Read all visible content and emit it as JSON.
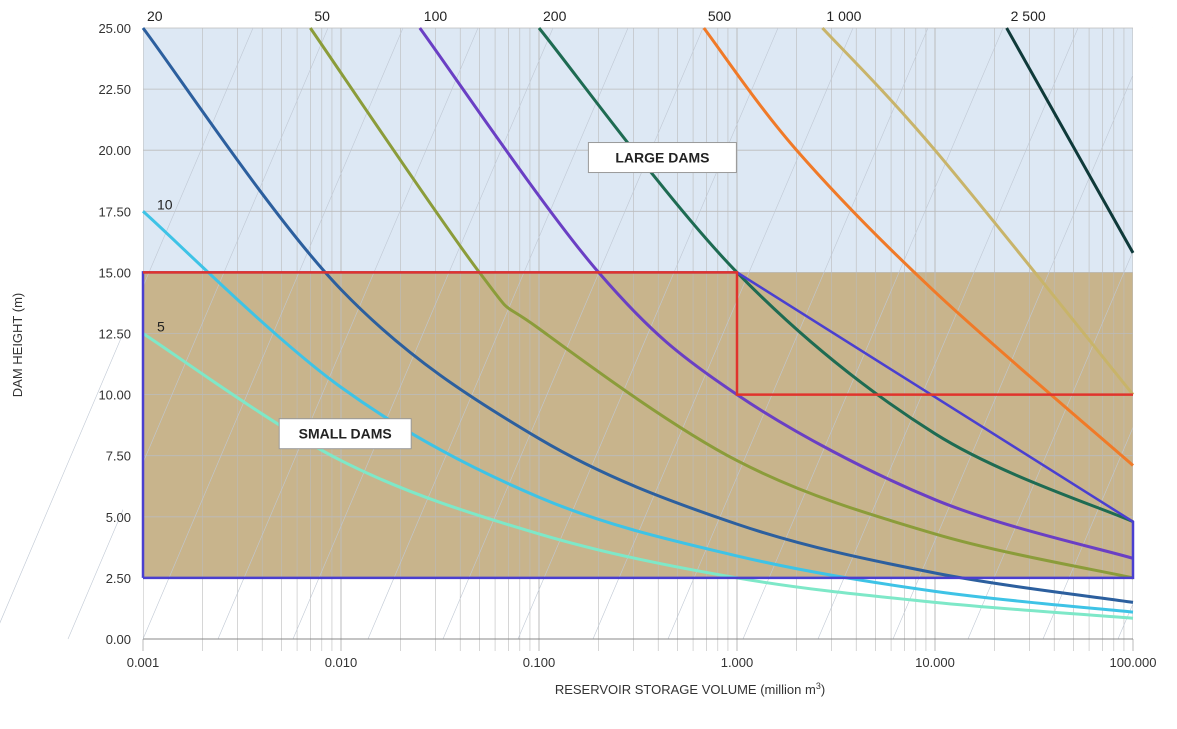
{
  "chart_data": {
    "type": "line",
    "xlabel": "RESERVOIR STORAGE VOLUME (million m",
    "xlabel_sup": "3",
    "xlabel_close": ")",
    "ylabel": "DAM HEIGHT (m)",
    "xscale": "log",
    "xlim": [
      0.001,
      100
    ],
    "ylim": [
      0,
      25
    ],
    "grid": true,
    "x_ticks": [
      {
        "value": 0.001,
        "label": "0.001"
      },
      {
        "value": 0.01,
        "label": "0.010"
      },
      {
        "value": 0.1,
        "label": "0.100"
      },
      {
        "value": 1,
        "label": "1.000"
      },
      {
        "value": 10,
        "label": "10.000"
      },
      {
        "value": 100,
        "label": "100.000"
      }
    ],
    "y_ticks": [
      {
        "value": 0,
        "label": "0.00"
      },
      {
        "value": 2.5,
        "label": "2.50"
      },
      {
        "value": 5,
        "label": "5.00"
      },
      {
        "value": 7.5,
        "label": "7.50"
      },
      {
        "value": 10,
        "label": "10.00"
      },
      {
        "value": 12.5,
        "label": "12.50"
      },
      {
        "value": 15,
        "label": "15.00"
      },
      {
        "value": 17.5,
        "label": "17.50"
      },
      {
        "value": 20,
        "label": "20.00"
      },
      {
        "value": 22.5,
        "label": "22.50"
      },
      {
        "value": 25,
        "label": "25.00"
      }
    ],
    "series": [
      {
        "label": "5",
        "color": "#7ee8c8",
        "points": [
          [
            0.001,
            12.5
          ],
          [
            0.01,
            7.3
          ],
          [
            0.1,
            4.3
          ],
          [
            1,
            2.5
          ],
          [
            10,
            1.5
          ],
          [
            100,
            0.85
          ]
        ]
      },
      {
        "label": "10",
        "color": "#3ec3e6",
        "points": [
          [
            0.001,
            17.5
          ],
          [
            0.01,
            10.3
          ],
          [
            0.1,
            5.8
          ],
          [
            1,
            3.4
          ],
          [
            10,
            1.95
          ],
          [
            100,
            1.1
          ]
        ]
      },
      {
        "label": "20",
        "color": "#2c5f9e",
        "points": [
          [
            0.001,
            25
          ],
          [
            0.01,
            14.3
          ],
          [
            0.1,
            8.2
          ],
          [
            1,
            4.7
          ],
          [
            10,
            2.7
          ],
          [
            100,
            1.5
          ]
        ]
      },
      {
        "label": "50",
        "color": "#8b9c3a",
        "points": [
          [
            0.007,
            25
          ],
          [
            0.05,
            15
          ],
          [
            0.1,
            12.7
          ],
          [
            1,
            7.3
          ],
          [
            10,
            4.3
          ],
          [
            100,
            2.5
          ]
        ]
      },
      {
        "label": "100",
        "color": "#6a3fc4",
        "points": [
          [
            0.025,
            25
          ],
          [
            0.2,
            15
          ],
          [
            1,
            10
          ],
          [
            10,
            5.7
          ],
          [
            100,
            3.3
          ]
        ]
      },
      {
        "label": "200",
        "color": "#1e6b52",
        "points": [
          [
            0.1,
            25
          ],
          [
            1,
            15
          ],
          [
            10,
            8.4
          ],
          [
            100,
            4.8
          ]
        ]
      },
      {
        "label": "500",
        "color": "#f07a28",
        "points": [
          [
            0.68,
            25
          ],
          [
            2,
            20
          ],
          [
            10,
            14.2
          ],
          [
            100,
            7.1
          ]
        ]
      },
      {
        "label": "1 000",
        "color": "#c8b46a",
        "points": [
          [
            2.7,
            25
          ],
          [
            10,
            20
          ],
          [
            100,
            10
          ]
        ]
      },
      {
        "label": "2 500",
        "color": "#0f3a3a",
        "points": [
          [
            23,
            25
          ],
          [
            100,
            15.8
          ]
        ]
      }
    ],
    "regions": [
      {
        "name": "SMALL DAMS",
        "label": "SMALL DAMS",
        "fill": "#c8b48c",
        "x": [
          0.001,
          100
        ],
        "y": [
          2.5,
          15
        ]
      },
      {
        "name": "LARGE DAMS",
        "label": "LARGE DAMS",
        "fill": "#dde8f4",
        "x": [
          0.001,
          100
        ],
        "y": [
          15,
          25
        ]
      }
    ],
    "red_boundary": [
      [
        0.001,
        15
      ],
      [
        1,
        15
      ],
      [
        1,
        10
      ],
      [
        100,
        10
      ]
    ],
    "blue_boundary": [
      [
        0.001,
        2.5
      ],
      [
        0.001,
        15
      ],
      [
        1,
        15
      ],
      [
        100,
        4.8
      ],
      [
        100,
        2.5
      ],
      [
        0.001,
        2.5
      ]
    ],
    "colors": {
      "small_region": "#c8b48c",
      "large_region": "#dde8f4",
      "red_boundary": "#e0342c",
      "blue_boundary": "#4a3fd0",
      "grid": "#bbbbbb"
    }
  }
}
